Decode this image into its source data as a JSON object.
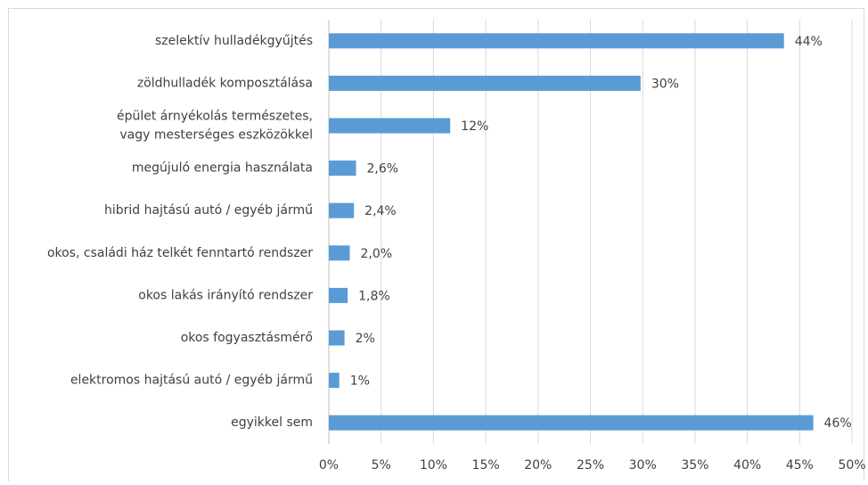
{
  "chart_data": {
    "type": "hbar",
    "categories": [
      "szelektív hulladékgyűjtés",
      "zöldhulladék komposztálása",
      "épület árnyékolás természetes,\nvagy mesterséges eszközökkel",
      "megújuló energia használata",
      "hibrid hajtású autó / egyéb jármű",
      "okos, családi ház telkét fenntartó rendszer",
      "okos lakás irányító rendszer",
      "okos fogyasztásmérő",
      "elektromos hajtású autó / egyéb jármű",
      "egyikkel sem"
    ],
    "values": [
      43.5,
      29.8,
      11.6,
      2.6,
      2.4,
      2.0,
      1.8,
      1.5,
      1,
      46.3
    ],
    "value_labels": [
      "44%",
      "30%",
      "12%",
      "2,6%",
      "2,4%",
      "2,0%",
      "1,8%",
      "2%",
      "1%",
      "46%"
    ],
    "color": "#5b9bd5",
    "xlim": [
      0,
      50
    ],
    "xticks": [
      {
        "value": 0,
        "label": "0%"
      },
      {
        "value": 5,
        "label": "5%"
      },
      {
        "value": 10,
        "label": "10%"
      },
      {
        "value": 15,
        "label": "15%"
      },
      {
        "value": 20,
        "label": "20%"
      },
      {
        "value": 25,
        "label": "25%"
      },
      {
        "value": 30,
        "label": "30%"
      },
      {
        "value": 35,
        "label": "35%"
      },
      {
        "value": 40,
        "label": "40%"
      },
      {
        "value": 45,
        "label": "45%"
      },
      {
        "value": 50,
        "label": "50%"
      }
    ],
    "grid": true
  }
}
